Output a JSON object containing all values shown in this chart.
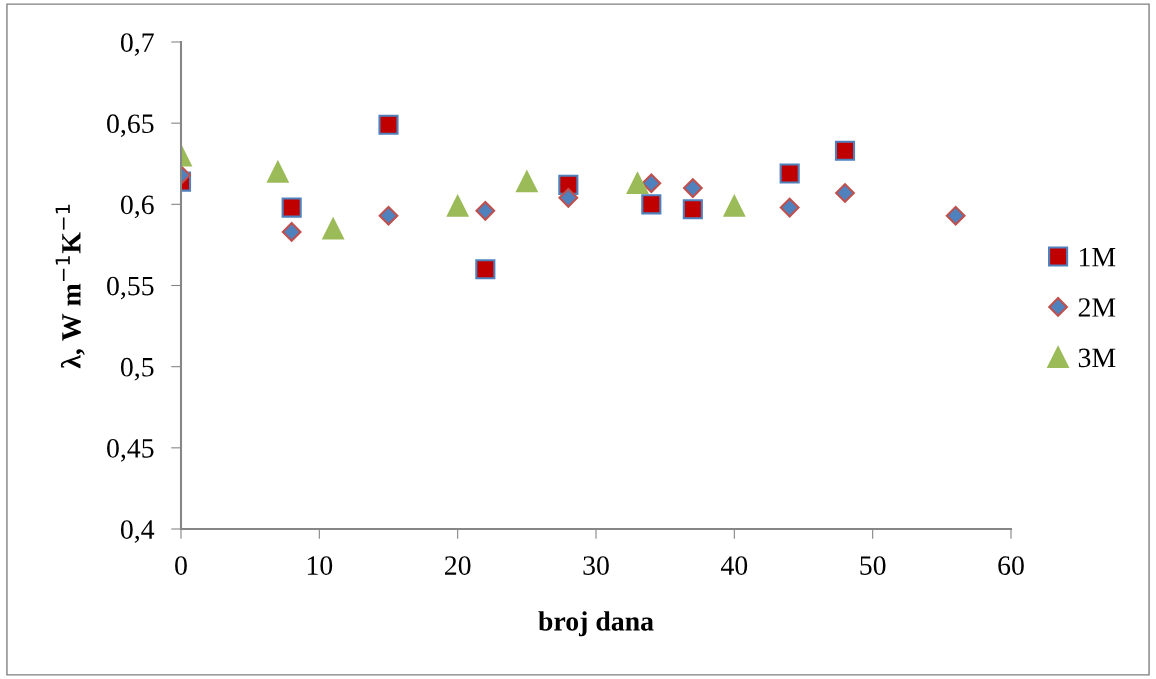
{
  "chart_data": {
    "type": "scatter",
    "xlabel": "broj dana",
    "ylabel": "λ, W m$^{−1}$K$^{−1}$",
    "xlim": [
      0,
      60
    ],
    "xticks": [
      0,
      10,
      20,
      30,
      40,
      50,
      60
    ],
    "ylim": [
      0.4,
      0.7
    ],
    "yticks": [
      {
        "value": 0.4,
        "label": "0,4"
      },
      {
        "value": 0.45,
        "label": "0,45"
      },
      {
        "value": 0.5,
        "label": "0,5"
      },
      {
        "value": 0.55,
        "label": "0,55"
      },
      {
        "value": 0.6,
        "label": "0,6"
      },
      {
        "value": 0.65,
        "label": "0,65"
      },
      {
        "value": 0.7,
        "label": "0,7"
      }
    ],
    "grid": false,
    "legend": "right",
    "series": [
      {
        "name": "1M",
        "color": "#c00000",
        "marker": "square",
        "x": [
          0,
          8,
          15,
          22,
          28,
          34,
          37,
          44,
          48
        ],
        "values": [
          0.614,
          0.598,
          0.649,
          0.56,
          0.612,
          0.6,
          0.597,
          0.619,
          0.633
        ]
      },
      {
        "name": "2M",
        "color": "#4f81bd",
        "marker": "diamond",
        "x": [
          0,
          8,
          15,
          22,
          28,
          34,
          37,
          44,
          48,
          56
        ],
        "values": [
          0.618,
          0.583,
          0.593,
          0.596,
          0.604,
          0.613,
          0.61,
          0.598,
          0.607,
          0.593
        ]
      },
      {
        "name": "3M",
        "color": "#9bbb59",
        "marker": "triangle",
        "x": [
          0,
          7,
          11,
          20,
          25,
          33,
          40
        ],
        "values": [
          0.63,
          0.62,
          0.585,
          0.599,
          0.614,
          0.613,
          0.599
        ]
      }
    ]
  }
}
